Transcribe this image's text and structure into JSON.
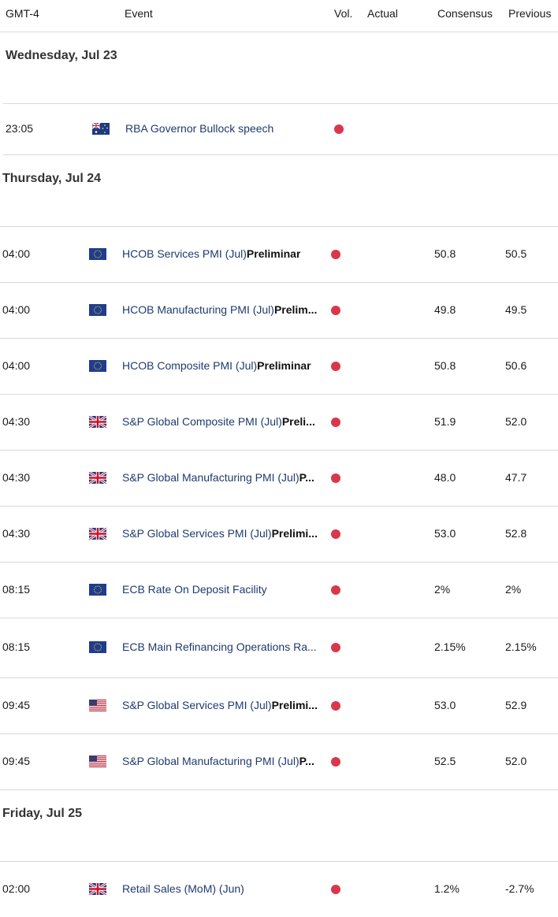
{
  "colors": {
    "impact_high": "#d9384a",
    "event_text": "#1f3a6e",
    "divider": "#d9d9d9"
  },
  "header": {
    "tz": "GMT-4",
    "event": "Event",
    "vol": "Vol.",
    "actual": "Actual",
    "consensus": "Consensus",
    "previous": "Previous"
  },
  "days": [
    {
      "label": "Wednesday, Jul 23",
      "events": [
        {
          "time": "23:05",
          "flag": "australia-flag-icon",
          "name": "RBA Governor Bullock speech",
          "bold": "",
          "vol": "high",
          "actual": "",
          "consensus": "",
          "previous": ""
        }
      ]
    },
    {
      "label": "Thursday, Jul 24",
      "events": [
        {
          "time": "04:00",
          "flag": "eu-flag-icon",
          "name": "HCOB Services PMI (Jul)",
          "bold": "Preliminar",
          "vol": "high",
          "actual": "",
          "consensus": "50.8",
          "previous": "50.5"
        },
        {
          "time": "04:00",
          "flag": "eu-flag-icon",
          "name": "HCOB Manufacturing PMI (Jul)",
          "bold": "Prelim...",
          "vol": "high",
          "actual": "",
          "consensus": "49.8",
          "previous": "49.5"
        },
        {
          "time": "04:00",
          "flag": "eu-flag-icon",
          "name": "HCOB Composite PMI (Jul)",
          "bold": "Preliminar",
          "vol": "high",
          "actual": "",
          "consensus": "50.8",
          "previous": "50.6"
        },
        {
          "time": "04:30",
          "flag": "uk-flag-icon",
          "name": "S&P Global Composite PMI (Jul)",
          "bold": "Preli...",
          "vol": "high",
          "actual": "",
          "consensus": "51.9",
          "previous": "52.0"
        },
        {
          "time": "04:30",
          "flag": "uk-flag-icon",
          "name": "S&P Global Manufacturing PMI (Jul)",
          "bold": "P...",
          "vol": "high",
          "actual": "",
          "consensus": "48.0",
          "previous": "47.7"
        },
        {
          "time": "04:30",
          "flag": "uk-flag-icon",
          "name": "S&P Global Services PMI (Jul)",
          "bold": "Prelimi...",
          "vol": "high",
          "actual": "",
          "consensus": "53.0",
          "previous": "52.8"
        },
        {
          "time": "08:15",
          "flag": "eu-flag-icon",
          "name": "ECB Rate On Deposit Facility",
          "bold": "",
          "vol": "high",
          "actual": "",
          "consensus": "2%",
          "previous": "2%"
        },
        {
          "time": "08:15",
          "flag": "eu-flag-icon",
          "name": "ECB Main Refinancing Operations Ra...",
          "bold": "",
          "vol": "high",
          "actual": "",
          "consensus": "2.15%",
          "previous": "2.15%"
        },
        {
          "time": "09:45",
          "flag": "us-flag-icon",
          "name": "S&P Global Services PMI (Jul)",
          "bold": "Prelimi...",
          "vol": "high",
          "actual": "",
          "consensus": "53.0",
          "previous": "52.9"
        },
        {
          "time": "09:45",
          "flag": "us-flag-icon",
          "name": "S&P Global Manufacturing PMI (Jul)",
          "bold": "P...",
          "vol": "high",
          "actual": "",
          "consensus": "52.5",
          "previous": "52.0"
        }
      ]
    },
    {
      "label": "Friday, Jul 25",
      "events": [
        {
          "time": "02:00",
          "flag": "uk-flag-icon",
          "name": "Retail Sales (MoM) (Jun)",
          "bold": "",
          "vol": "high",
          "actual": "",
          "consensus": "1.2%",
          "previous": "-2.7%"
        }
      ]
    }
  ]
}
